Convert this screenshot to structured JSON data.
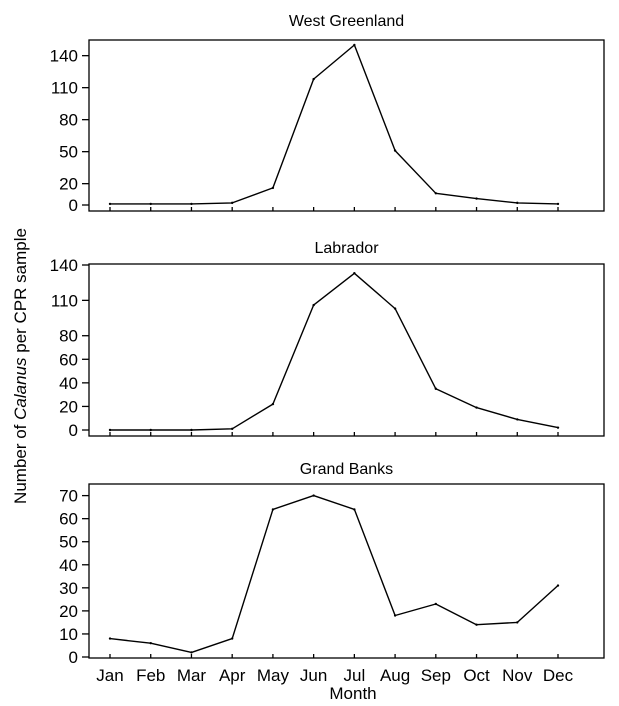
{
  "chart_data": {
    "type": "line",
    "xlabel": "Month",
    "ylabel_parts": [
      "Number of ",
      "Calanus",
      " per CPR sample"
    ],
    "categories": [
      "Jan",
      "Feb",
      "Mar",
      "Apr",
      "May",
      "Jun",
      "Jul",
      "Aug",
      "Sep",
      "Oct",
      "Nov",
      "Dec"
    ],
    "panels": [
      {
        "title": "West Greenland",
        "ylim": [
          0,
          150
        ],
        "yticks": [
          0,
          20,
          50,
          80,
          110,
          140
        ],
        "values": [
          1,
          1,
          1,
          2,
          16,
          118,
          150,
          51,
          11,
          6,
          2,
          1
        ]
      },
      {
        "title": "Labrador",
        "ylim": [
          0,
          140
        ],
        "yticks": [
          0,
          20,
          40,
          60,
          80,
          110,
          140
        ],
        "values": [
          0,
          0,
          0,
          1,
          22,
          106,
          133,
          103,
          35,
          19,
          9,
          2
        ]
      },
      {
        "title": "Grand Banks",
        "ylim": [
          0,
          72
        ],
        "yticks": [
          0,
          10,
          20,
          30,
          40,
          50,
          60,
          70
        ],
        "values": [
          8,
          6,
          2,
          8,
          64,
          70,
          64,
          18,
          23,
          14,
          15,
          31
        ]
      }
    ]
  }
}
